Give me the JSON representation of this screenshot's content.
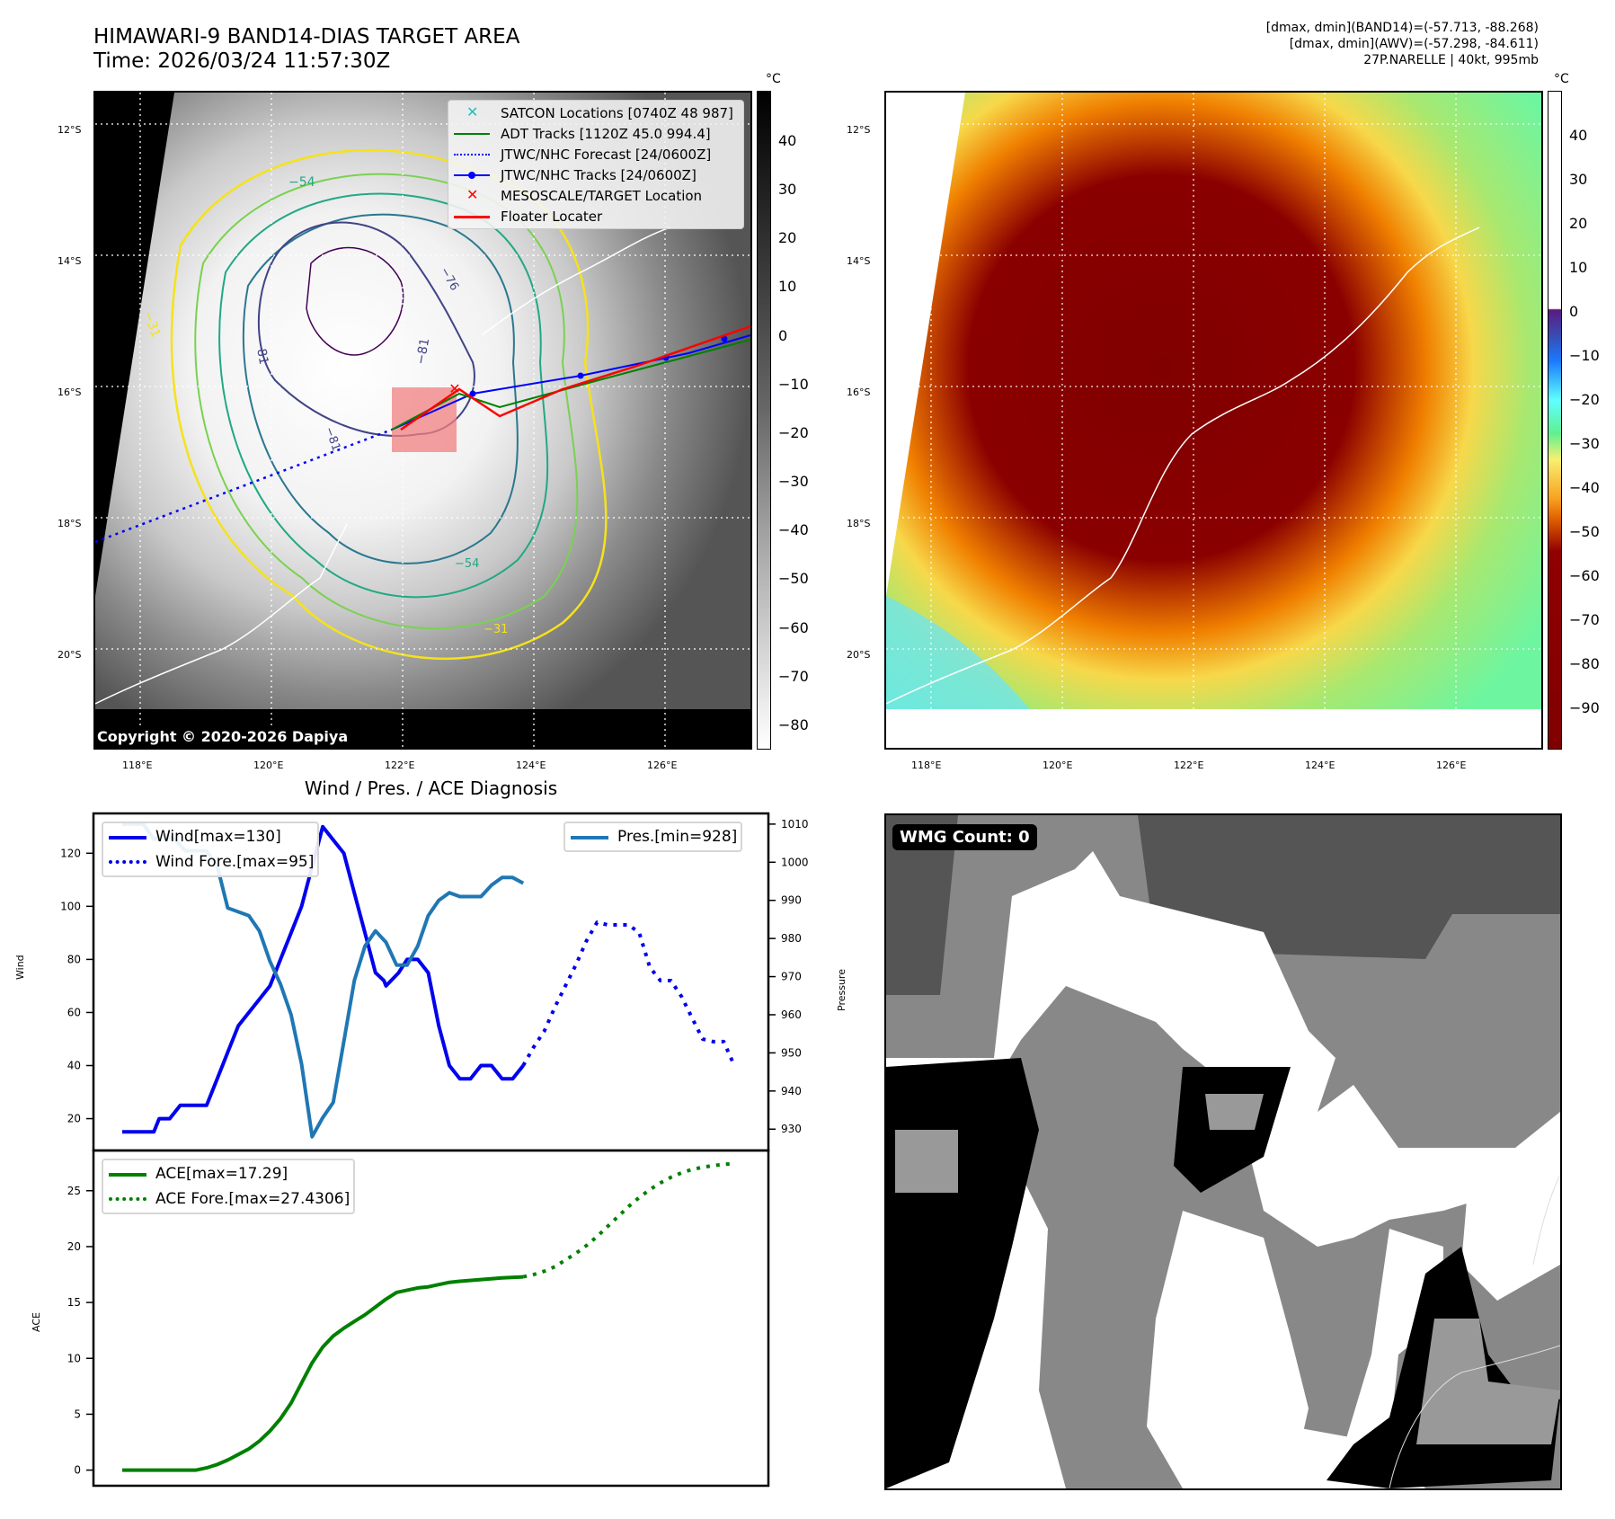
{
  "header": {
    "title_line1": "HIMAWARI-9 BAND14-DIAS TARGET AREA",
    "title_line2": "Time: 2026/03/24 11:57:30Z",
    "info_line1": "[dmax, dmin](BAND14)=(-57.713, -88.268)",
    "info_line2": "[dmax, dmin](AWV)=(-57.298, -84.611)",
    "info_line3": "27P.NARELLE | 40kt, 995mb"
  },
  "map_axes": {
    "lat_labels": [
      "12°S",
      "14°S",
      "16°S",
      "18°S",
      "20°S"
    ],
    "lon_labels": [
      "118°E",
      "120°E",
      "122°E",
      "124°E",
      "126°E"
    ]
  },
  "left_map": {
    "colorbar_unit": "°C",
    "colorbar_ticks": [
      "40",
      "30",
      "20",
      "10",
      "0",
      "−10",
      "−20",
      "−30",
      "−40",
      "−50",
      "−60",
      "−70",
      "−80"
    ],
    "contour_labels": [
      "−54",
      "−81",
      "−81",
      "−31",
      "−76",
      "−81",
      "−54",
      "−31"
    ],
    "copyright": "Copyright © 2020-2026 Dapiya",
    "legend": [
      {
        "label": "SATCON Locations [0740Z 48 987]",
        "marker": "x-marker",
        "color": "#20c0c0"
      },
      {
        "label": "ADT Tracks [1120Z 45.0 994.4]",
        "marker": "solid-line",
        "color": "#008000"
      },
      {
        "label": "JTWC/NHC Forecast [24/0600Z]",
        "marker": "dotted-line",
        "color": "#0000ff"
      },
      {
        "label": "JTWC/NHC Tracks [24/0600Z]",
        "marker": "line-dot",
        "color": "#0000ff"
      },
      {
        "label": "MESOSCALE/TARGET Location",
        "marker": "x-marker",
        "color": "#ff0000"
      },
      {
        "label": "Floater Locater",
        "marker": "solid-line",
        "color": "#ff0000"
      }
    ]
  },
  "right_map": {
    "colorbar_unit": "°C",
    "colorbar_ticks": [
      "40",
      "30",
      "20",
      "10",
      "0",
      "−10",
      "−20",
      "−30",
      "−40",
      "−50",
      "−60",
      "−70",
      "−80",
      "−90"
    ]
  },
  "wmg_panel": {
    "badge": "WMG Count: 0"
  },
  "chart_data": [
    {
      "type": "line",
      "title": "Wind / Pres. / ACE Diagnosis",
      "xlabel": "",
      "ylabel": "Wind",
      "ylabel_right": "Pressure",
      "ylim": [
        8,
        135
      ],
      "ylim_right": [
        924.4,
        1012.8
      ],
      "yticks": [
        "20",
        "40",
        "60",
        "80",
        "100",
        "120"
      ],
      "yticks_right": [
        "930",
        "940",
        "950",
        "960",
        "970",
        "980",
        "990",
        "1000",
        "1010"
      ],
      "legend_left": [
        "Wind[max=130]",
        "Wind Fore.[max=95]"
      ],
      "legend_right": [
        "Pres.[min=928]"
      ],
      "grid": false,
      "series": [
        {
          "name": "Wind[max=130]",
          "axis": "left",
          "style": "solid",
          "color": "#0000ee",
          "x": [
            0,
            1,
            2,
            3,
            3.5,
            4.5,
            5.5,
            6.5,
            8,
            9,
            10,
            11,
            12,
            13,
            14,
            15,
            16,
            17,
            18,
            19,
            20,
            21,
            22,
            23,
            24,
            24.8,
            25,
            26.2,
            27,
            28,
            29,
            30,
            31,
            32,
            33,
            34,
            35,
            36,
            37,
            38
          ],
          "y": [
            15,
            15,
            15,
            15,
            20,
            20,
            25,
            25,
            25,
            35,
            45,
            55,
            60,
            65,
            70,
            80,
            90,
            100,
            115,
            130,
            125,
            120,
            105,
            90,
            75,
            72,
            70,
            75,
            80,
            80,
            75,
            55,
            40,
            35,
            35,
            40,
            40,
            35,
            35,
            40
          ]
        },
        {
          "name": "Wind Fore.[max=95]",
          "axis": "left",
          "style": "dotted",
          "color": "#0000ee",
          "x": [
            38,
            39,
            40,
            41,
            42,
            43,
            44,
            45,
            46,
            47,
            48,
            49,
            50,
            51,
            52,
            53,
            54,
            55,
            56,
            57,
            58
          ],
          "y": [
            40,
            47,
            53,
            62,
            70,
            78,
            87,
            94,
            93,
            93,
            93,
            90,
            77,
            72,
            72,
            66,
            58,
            50,
            49,
            49,
            40
          ]
        },
        {
          "name": "Pres.[min=928]",
          "axis": "right",
          "style": "solid",
          "color": "#1f77b4",
          "x": [
            0,
            2,
            3,
            4,
            5,
            6,
            8,
            9,
            10,
            12,
            13,
            14,
            15,
            16,
            17,
            18,
            19,
            20,
            21,
            22,
            23,
            24,
            25,
            26,
            27,
            28,
            29,
            30,
            31,
            32,
            34,
            35,
            36,
            37,
            38
          ],
          "y": [
            1010,
            1010,
            1006,
            1007,
            1006,
            1003,
            1003,
            999,
            988,
            986,
            982,
            974,
            968,
            960,
            947,
            928,
            933,
            937,
            953,
            969,
            978,
            982,
            979,
            973,
            973,
            978,
            986,
            990,
            992,
            991,
            991,
            994,
            996,
            996,
            994.5
          ]
        }
      ]
    },
    {
      "type": "line",
      "title": "",
      "xlabel": "",
      "ylabel": "ACE",
      "ylim": [
        -1.4,
        28.6
      ],
      "yticks": [
        "0",
        "5",
        "10",
        "15",
        "20",
        "25"
      ],
      "legend": [
        "ACE[max=17.29]",
        "ACE Fore.[max=27.4306]"
      ],
      "grid": false,
      "series": [
        {
          "name": "ACE[max=17.29]",
          "style": "solid",
          "color": "#008000",
          "x": [
            0,
            2,
            4,
            6,
            7,
            8,
            9,
            10,
            11,
            12,
            13,
            14,
            15,
            16,
            17,
            18,
            19,
            20,
            21,
            22,
            23,
            24,
            25,
            26,
            27,
            28,
            29,
            30,
            31,
            32,
            34,
            36,
            38
          ],
          "y": [
            0,
            0,
            0,
            0,
            0,
            0.2,
            0.5,
            0.9,
            1.4,
            1.9,
            2.6,
            3.5,
            4.6,
            6.0,
            7.8,
            9.6,
            11.0,
            12.0,
            12.7,
            13.3,
            13.9,
            14.6,
            15.3,
            15.9,
            16.1,
            16.3,
            16.4,
            16.6,
            16.8,
            16.9,
            17.05,
            17.2,
            17.29
          ]
        },
        {
          "name": "ACE Fore.[max=27.4306]",
          "style": "dotted",
          "color": "#008000",
          "x": [
            38,
            39,
            40,
            41,
            42,
            43,
            44,
            45,
            46,
            47,
            48,
            49,
            50,
            51,
            52,
            53,
            54,
            55,
            56,
            57,
            58
          ],
          "y": [
            17.29,
            17.5,
            17.8,
            18.2,
            18.8,
            19.4,
            20.1,
            20.9,
            21.8,
            22.7,
            23.6,
            24.4,
            25.1,
            25.7,
            26.2,
            26.6,
            26.9,
            27.1,
            27.25,
            27.35,
            27.43
          ]
        }
      ]
    }
  ],
  "colors": {
    "wind": "#0000ee",
    "pressure": "#1f77b4",
    "ace": "#008000",
    "floater": "#ff0000",
    "target_box": "#f08080"
  }
}
